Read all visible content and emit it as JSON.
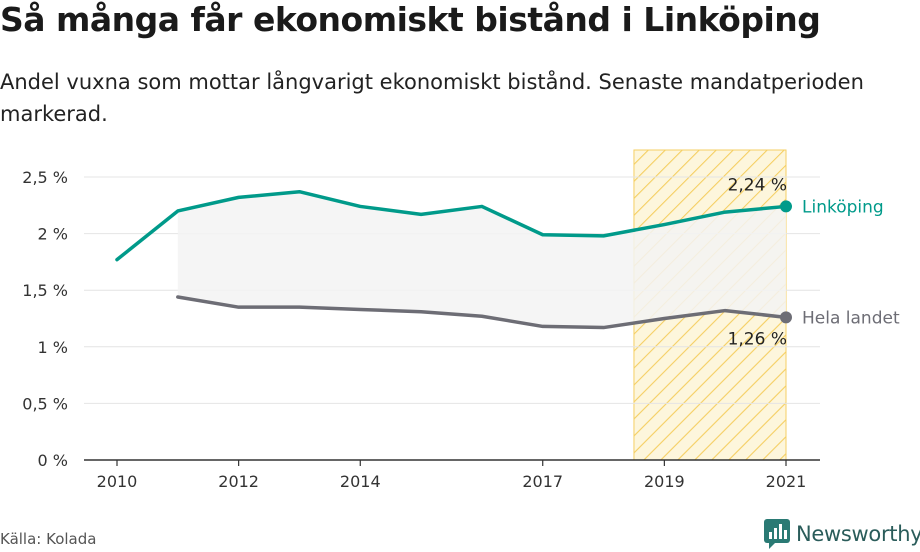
{
  "title": "Så många får ekonomiskt bistånd i Linköping",
  "subtitle": "Andel vuxna som mottar långvarigt ekonomiskt bistånd. Senaste mandatperioden markerad.",
  "source": "Källa: Kolada",
  "brand": "Newsworthy",
  "colors": {
    "linkoping": "#009a8a",
    "national": "#6d6d75",
    "highlight": "#f5c842",
    "grid": "#e4e4e4",
    "gap_fill": "#f3f3f3"
  },
  "chart_data": {
    "type": "line",
    "x": [
      2010,
      2011,
      2012,
      2013,
      2014,
      2015,
      2016,
      2017,
      2018,
      2019,
      2020,
      2021
    ],
    "xticks": [
      2010,
      2012,
      2014,
      2017,
      2019,
      2021
    ],
    "xtick_labels": [
      "2010",
      "2012",
      "2014",
      "2017",
      "2019",
      "2021"
    ],
    "ylim": [
      0,
      2.5
    ],
    "yticks": [
      0,
      0.5,
      1,
      1.5,
      2,
      2.5
    ],
    "ytick_labels": [
      "0 %",
      "0,5 %",
      "1 %",
      "1,5 %",
      "2 %",
      "2,5 %"
    ],
    "highlight_range": [
      2018.5,
      2021
    ],
    "series": [
      {
        "name": "Linköping",
        "values": [
          1.77,
          2.2,
          2.32,
          2.37,
          2.24,
          2.17,
          2.24,
          1.99,
          1.98,
          2.08,
          2.19,
          2.24
        ],
        "end_label": "2,24 %"
      },
      {
        "name": "Hela landet",
        "values": [
          null,
          1.44,
          1.35,
          1.35,
          1.33,
          1.31,
          1.27,
          1.18,
          1.17,
          1.25,
          1.32,
          1.26
        ],
        "end_label": "1,26 %"
      }
    ]
  }
}
